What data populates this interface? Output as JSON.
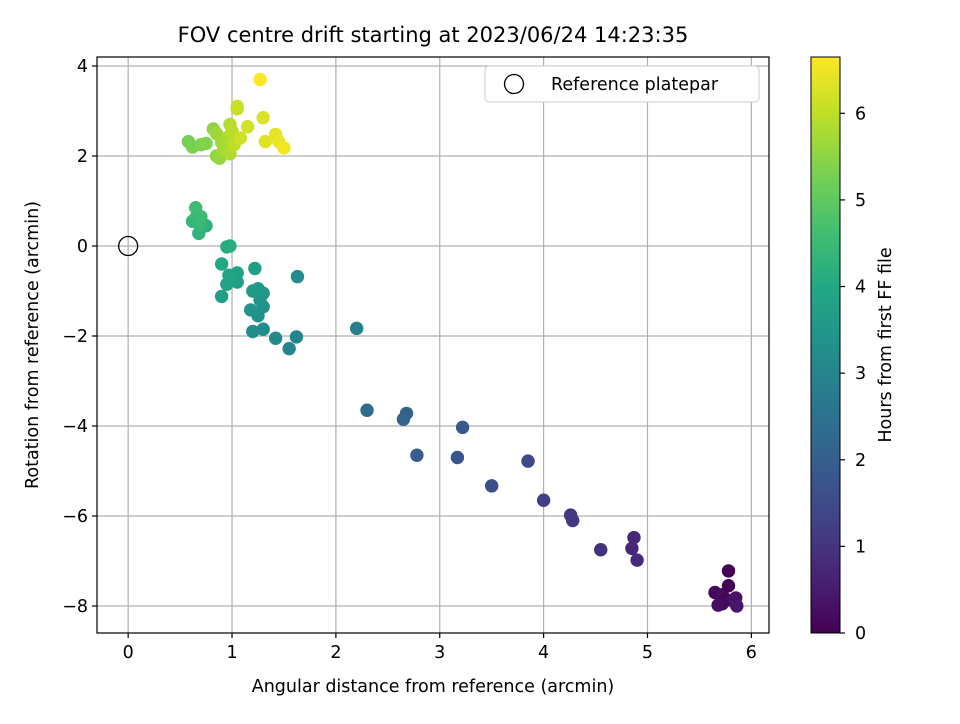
{
  "chart_data": {
    "type": "scatter",
    "title": "FOV centre drift starting at 2023/06/24 14:23:35",
    "xlabel": "Angular distance from reference (arcmin)",
    "ylabel": "Rotation from reference (arcmin)",
    "xlim": [
      -0.3,
      6.17
    ],
    "ylim": [
      -8.6,
      4.2
    ],
    "xticks": [
      0,
      1,
      2,
      3,
      4,
      5,
      6
    ],
    "yticks": [
      -8,
      -6,
      -4,
      -2,
      0,
      2,
      4
    ],
    "xtick_labels": [
      "0",
      "1",
      "2",
      "3",
      "4",
      "5",
      "6"
    ],
    "ytick_labels": [
      "−8",
      "−6",
      "−4",
      "−2",
      "0",
      "2",
      "4"
    ],
    "grid": true,
    "legend": {
      "placement": "top-right",
      "entries": [
        "Reference platepar"
      ]
    },
    "reference_point": {
      "x": 0,
      "y": 0
    },
    "colorbar": {
      "label": "Hours from first FF file",
      "colormap": "viridis",
      "range": [
        0,
        6.65
      ],
      "ticks": [
        0,
        1,
        2,
        3,
        4,
        5,
        6
      ],
      "tick_labels": [
        "0",
        "1",
        "2",
        "3",
        "4",
        "5",
        "6"
      ]
    },
    "points": [
      {
        "x": 5.65,
        "y": -7.7,
        "c": 0.15
      },
      {
        "x": 5.7,
        "y": -7.95,
        "c": 0.2
      },
      {
        "x": 5.72,
        "y": -7.75,
        "c": 0.25
      },
      {
        "x": 5.75,
        "y": -7.85,
        "c": 0.1
      },
      {
        "x": 5.78,
        "y": -7.55,
        "c": 0.05
      },
      {
        "x": 5.78,
        "y": -7.22,
        "c": 0.0
      },
      {
        "x": 5.82,
        "y": -7.88,
        "c": 0.3
      },
      {
        "x": 5.85,
        "y": -7.82,
        "c": 0.35
      },
      {
        "x": 5.86,
        "y": -8.0,
        "c": 0.4
      },
      {
        "x": 5.72,
        "y": -7.95,
        "c": 0.18
      },
      {
        "x": 5.68,
        "y": -7.98,
        "c": 0.22
      },
      {
        "x": 4.85,
        "y": -6.72,
        "c": 0.7
      },
      {
        "x": 4.87,
        "y": -6.48,
        "c": 0.75
      },
      {
        "x": 4.9,
        "y": -6.98,
        "c": 0.8
      },
      {
        "x": 4.55,
        "y": -6.75,
        "c": 0.95
      },
      {
        "x": 4.28,
        "y": -6.1,
        "c": 1.05
      },
      {
        "x": 4.26,
        "y": -5.98,
        "c": 1.1
      },
      {
        "x": 4.0,
        "y": -5.65,
        "c": 1.25
      },
      {
        "x": 3.85,
        "y": -4.78,
        "c": 1.45
      },
      {
        "x": 3.5,
        "y": -5.33,
        "c": 1.6
      },
      {
        "x": 3.17,
        "y": -4.7,
        "c": 1.75
      },
      {
        "x": 3.22,
        "y": -4.03,
        "c": 1.85
      },
      {
        "x": 2.78,
        "y": -4.65,
        "c": 1.95
      },
      {
        "x": 2.68,
        "y": -3.72,
        "c": 2.1
      },
      {
        "x": 2.65,
        "y": -3.85,
        "c": 2.15
      },
      {
        "x": 2.3,
        "y": -3.65,
        "c": 2.35
      },
      {
        "x": 2.2,
        "y": -1.83,
        "c": 2.85
      },
      {
        "x": 1.63,
        "y": -0.68,
        "c": 3.15
      },
      {
        "x": 1.62,
        "y": -2.02,
        "c": 3.0
      },
      {
        "x": 1.55,
        "y": -2.28,
        "c": 3.05
      },
      {
        "x": 1.42,
        "y": -2.05,
        "c": 3.1
      },
      {
        "x": 1.3,
        "y": -1.85,
        "c": 3.2
      },
      {
        "x": 1.2,
        "y": -1.9,
        "c": 3.25
      },
      {
        "x": 1.25,
        "y": -1.55,
        "c": 3.3
      },
      {
        "x": 1.3,
        "y": -1.35,
        "c": 3.35
      },
      {
        "x": 1.18,
        "y": -1.42,
        "c": 3.4
      },
      {
        "x": 1.27,
        "y": -1.2,
        "c": 3.45
      },
      {
        "x": 1.3,
        "y": -1.05,
        "c": 3.5
      },
      {
        "x": 1.2,
        "y": -1.0,
        "c": 3.55
      },
      {
        "x": 1.25,
        "y": -0.95,
        "c": 3.6
      },
      {
        "x": 1.22,
        "y": -0.5,
        "c": 3.7
      },
      {
        "x": 1.05,
        "y": -0.8,
        "c": 3.75
      },
      {
        "x": 1.05,
        "y": -0.6,
        "c": 3.8
      },
      {
        "x": 0.95,
        "y": -0.85,
        "c": 3.85
      },
      {
        "x": 0.97,
        "y": -0.65,
        "c": 3.9
      },
      {
        "x": 0.9,
        "y": -1.12,
        "c": 3.7
      },
      {
        "x": 0.9,
        "y": -0.4,
        "c": 3.95
      },
      {
        "x": 0.95,
        "y": -0.02,
        "c": 4.05
      },
      {
        "x": 0.98,
        "y": 0.0,
        "c": 4.1
      },
      {
        "x": 0.75,
        "y": 0.45,
        "c": 4.25
      },
      {
        "x": 0.68,
        "y": 0.28,
        "c": 4.3
      },
      {
        "x": 0.62,
        "y": 0.55,
        "c": 4.35
      },
      {
        "x": 0.65,
        "y": 0.62,
        "c": 4.4
      },
      {
        "x": 0.68,
        "y": 0.5,
        "c": 4.45
      },
      {
        "x": 0.7,
        "y": 0.65,
        "c": 4.5
      },
      {
        "x": 0.65,
        "y": 0.85,
        "c": 4.55
      },
      {
        "x": 0.58,
        "y": 2.32,
        "c": 5.25
      },
      {
        "x": 0.62,
        "y": 2.2,
        "c": 5.3
      },
      {
        "x": 0.7,
        "y": 2.25,
        "c": 5.35
      },
      {
        "x": 0.75,
        "y": 2.28,
        "c": 5.4
      },
      {
        "x": 0.82,
        "y": 2.6,
        "c": 5.5
      },
      {
        "x": 0.85,
        "y": 2.0,
        "c": 5.55
      },
      {
        "x": 0.88,
        "y": 1.95,
        "c": 5.6
      },
      {
        "x": 0.85,
        "y": 2.5,
        "c": 5.65
      },
      {
        "x": 0.9,
        "y": 2.3,
        "c": 5.7
      },
      {
        "x": 0.92,
        "y": 2.15,
        "c": 5.75
      },
      {
        "x": 0.95,
        "y": 2.4,
        "c": 5.8
      },
      {
        "x": 0.98,
        "y": 2.05,
        "c": 5.85
      },
      {
        "x": 0.98,
        "y": 2.7,
        "c": 5.9
      },
      {
        "x": 1.0,
        "y": 2.55,
        "c": 5.95
      },
      {
        "x": 1.02,
        "y": 2.25,
        "c": 6.0
      },
      {
        "x": 1.05,
        "y": 3.05,
        "c": 6.05
      },
      {
        "x": 1.05,
        "y": 3.1,
        "c": 6.1
      },
      {
        "x": 1.08,
        "y": 2.4,
        "c": 6.15
      },
      {
        "x": 1.15,
        "y": 2.65,
        "c": 6.2
      },
      {
        "x": 1.3,
        "y": 2.85,
        "c": 6.3
      },
      {
        "x": 1.32,
        "y": 2.32,
        "c": 6.35
      },
      {
        "x": 1.42,
        "y": 2.48,
        "c": 6.4
      },
      {
        "x": 1.45,
        "y": 2.32,
        "c": 6.45
      },
      {
        "x": 1.5,
        "y": 2.18,
        "c": 6.55
      },
      {
        "x": 1.27,
        "y": 3.7,
        "c": 6.65
      }
    ]
  }
}
